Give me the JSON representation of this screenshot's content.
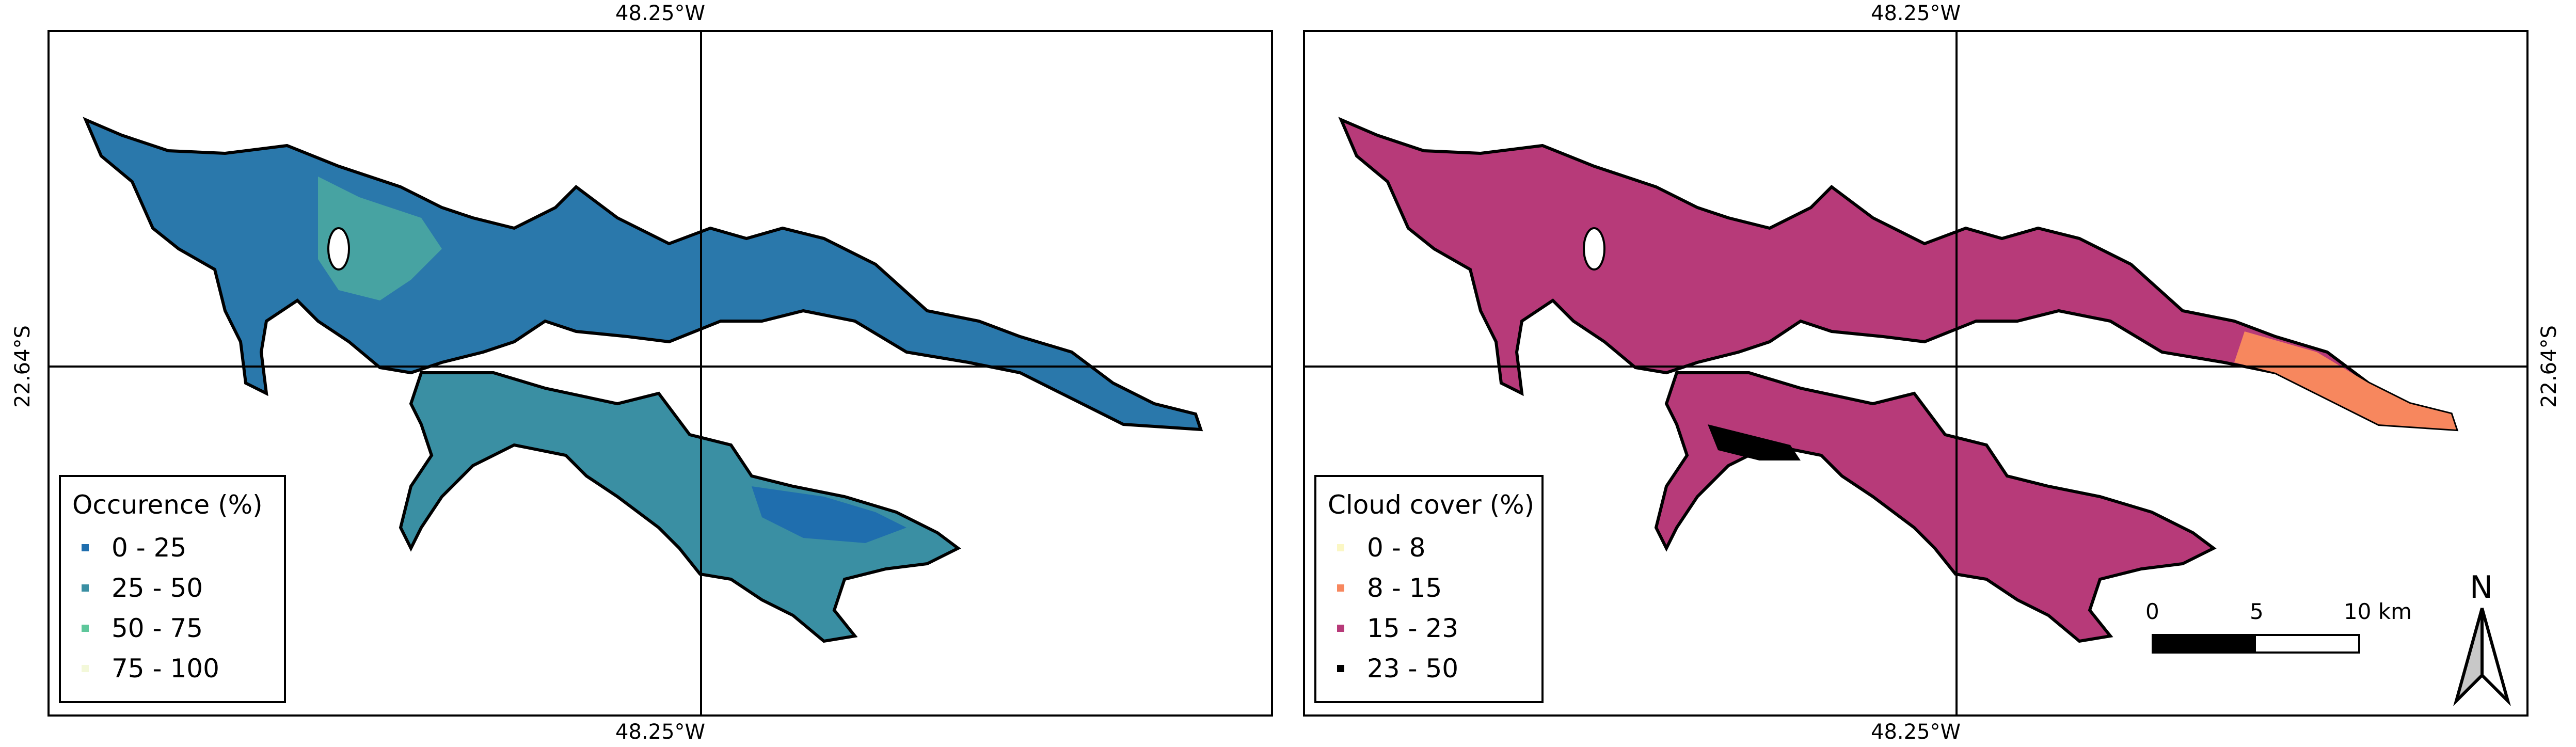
{
  "coordinates": {
    "longitude_label": "48.25°W",
    "latitude_label": "22.64°S"
  },
  "left_map": {
    "legend": {
      "title": "Occurence (%)",
      "items": [
        {
          "label": "0 - 25",
          "color": "#1f6eae"
        },
        {
          "label": "25 - 50",
          "color": "#3a8fa3"
        },
        {
          "label": "50 - 75",
          "color": "#5ec79b"
        },
        {
          "label": "75 - 100",
          "color": "#f3f8d9"
        }
      ]
    },
    "water_color": "#2a78ab",
    "shore_color": "#5ec79b"
  },
  "right_map": {
    "legend": {
      "title": "Cloud cover (%)",
      "items": [
        {
          "label": "0 - 8",
          "color": "#fbf7c4"
        },
        {
          "label": "8 - 15",
          "color": "#f7875e"
        },
        {
          "label": "15 - 23",
          "color": "#b73a79"
        },
        {
          "label": "23 - 50",
          "color": "#000000"
        }
      ]
    },
    "water_color": "#b73a79",
    "patch_color": "#f7875e"
  },
  "scale_bar": {
    "label_0": "0",
    "label_5": "5",
    "label_10": "10 km"
  },
  "north_arrow": {
    "label": "N"
  }
}
